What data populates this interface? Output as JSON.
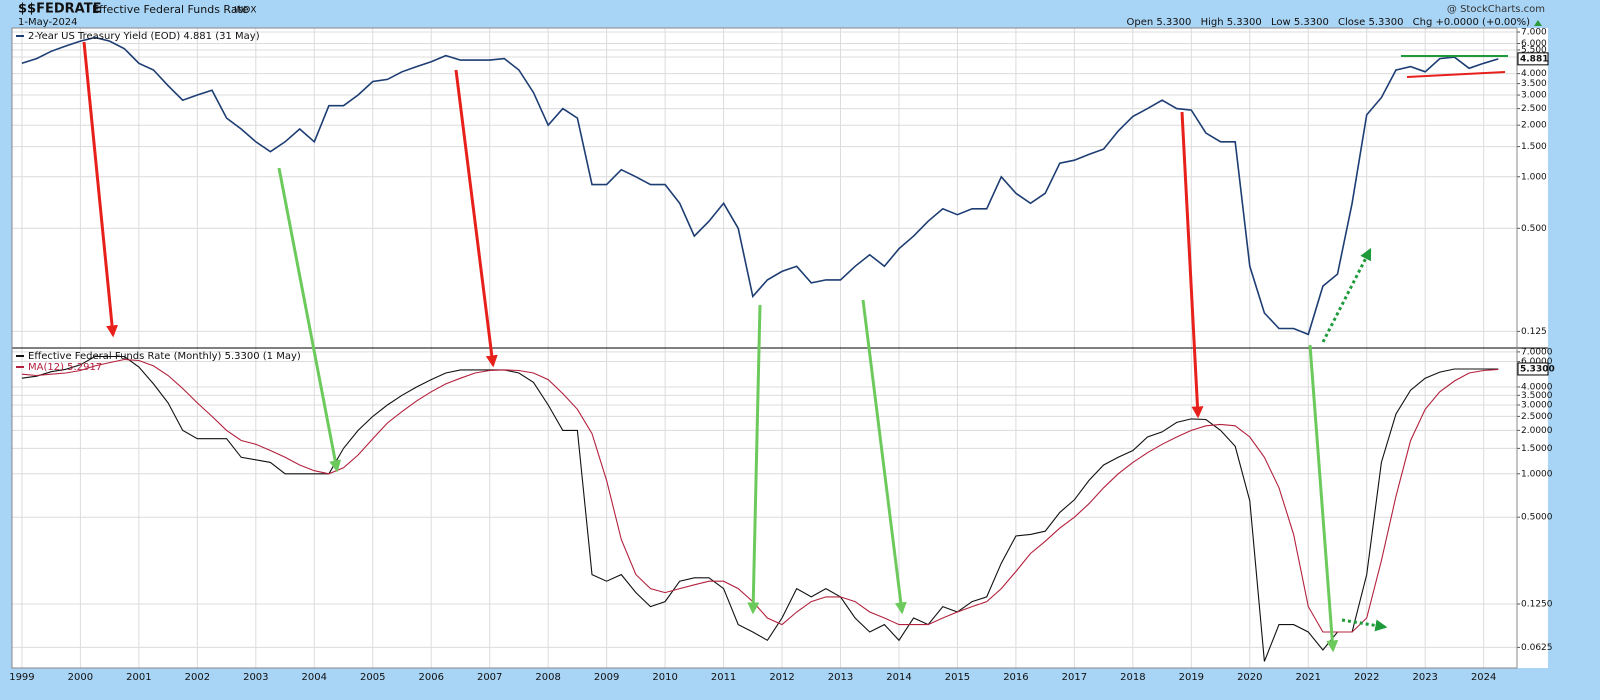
{
  "header": {
    "symbol": "$$FEDRATE",
    "name": "Effective Federal Funds Rate",
    "exchange": "INDX",
    "date": "1-May-2024",
    "credit": "@ StockCharts.com",
    "quote": [
      {
        "label": "Open",
        "value": "5.3300"
      },
      {
        "label": "High",
        "value": "5.3300"
      },
      {
        "label": "Low",
        "value": "5.3300"
      },
      {
        "label": "Close",
        "value": "5.3300"
      },
      {
        "label": "Chg",
        "value": "+0.0000 (+0.00%)"
      }
    ]
  },
  "chart_data": [
    {
      "type": "line",
      "log_scale": true,
      "grid": true,
      "x": [
        1999,
        1999.25,
        1999.5,
        1999.75,
        2000,
        2000.25,
        2000.5,
        2000.75,
        2001,
        2001.25,
        2001.5,
        2001.75,
        2002,
        2002.25,
        2002.5,
        2002.75,
        2003,
        2003.25,
        2003.5,
        2003.75,
        2004,
        2004.25,
        2004.5,
        2004.75,
        2005,
        2005.25,
        2005.5,
        2005.75,
        2006,
        2006.25,
        2006.5,
        2006.75,
        2007,
        2007.25,
        2007.5,
        2007.75,
        2008,
        2008.25,
        2008.5,
        2008.75,
        2009,
        2009.25,
        2009.5,
        2009.75,
        2010,
        2010.25,
        2010.5,
        2010.75,
        2011,
        2011.25,
        2011.5,
        2011.75,
        2012,
        2012.25,
        2012.5,
        2012.75,
        2013,
        2013.25,
        2013.5,
        2013.75,
        2014,
        2014.25,
        2014.5,
        2014.75,
        2015,
        2015.25,
        2015.5,
        2015.75,
        2016,
        2016.25,
        2016.5,
        2016.75,
        2017,
        2017.25,
        2017.5,
        2017.75,
        2018,
        2018.25,
        2018.5,
        2018.75,
        2019,
        2019.25,
        2019.5,
        2019.75,
        2020,
        2020.25,
        2020.5,
        2020.75,
        2021,
        2021.25,
        2021.5,
        2021.75,
        2022,
        2022.25,
        2022.5,
        2022.75,
        2023,
        2023.25,
        2023.5,
        2023.75,
        2024,
        2024.25
      ],
      "xlim": [
        1998.83,
        2024.57
      ],
      "xticks": [
        1999,
        2000,
        2001,
        2002,
        2003,
        2004,
        2005,
        2006,
        2007,
        2008,
        2009,
        2010,
        2011,
        2012,
        2013,
        2014,
        2015,
        2016,
        2017,
        2018,
        2019,
        2020,
        2021,
        2022,
        2023,
        2024
      ],
      "ylim": [
        0.1,
        7.39
      ],
      "yticks": [
        {
          "value": 7,
          "label": "7.000"
        },
        {
          "value": 6,
          "label": "6.000"
        },
        {
          "value": 5.5,
          "label": "5.500"
        },
        {
          "value": 5,
          "label": "5.000"
        },
        {
          "value": 4,
          "label": "4.000"
        },
        {
          "value": 3.5,
          "label": "3.500"
        },
        {
          "value": 3,
          "label": "3.000"
        },
        {
          "value": 2.5,
          "label": "2.500"
        },
        {
          "value": 2,
          "label": "2.000"
        },
        {
          "value": 1.5,
          "label": "1.500"
        },
        {
          "value": 1,
          "label": "1.000"
        },
        {
          "value": 0.5,
          "label": "0.500"
        },
        {
          "value": 0.125,
          "label": "0.125"
        }
      ],
      "last_value_tag": 4.881,
      "series": [
        {
          "name": "2-Year US Treasury Yield (EOD) 4.881 (31 May)",
          "color": "#1d3d73",
          "values": [
            4.6,
            4.9,
            5.4,
            5.8,
            6.2,
            6.5,
            6.2,
            5.6,
            4.6,
            4.2,
            3.4,
            2.8,
            3.0,
            3.2,
            2.2,
            1.9,
            1.6,
            1.4,
            1.6,
            1.9,
            1.6,
            2.6,
            2.6,
            3.0,
            3.6,
            3.7,
            4.1,
            4.4,
            4.7,
            5.1,
            4.8,
            4.8,
            4.8,
            4.9,
            4.2,
            3.1,
            2.0,
            2.5,
            2.2,
            0.9,
            0.9,
            1.1,
            1.0,
            0.9,
            0.9,
            0.7,
            0.45,
            0.55,
            0.7,
            0.5,
            0.2,
            0.25,
            0.28,
            0.3,
            0.24,
            0.25,
            0.25,
            0.3,
            0.35,
            0.3,
            0.38,
            0.45,
            0.55,
            0.65,
            0.6,
            0.65,
            0.65,
            1.0,
            0.8,
            0.7,
            0.8,
            1.2,
            1.25,
            1.35,
            1.45,
            1.85,
            2.25,
            2.5,
            2.8,
            2.5,
            2.45,
            1.8,
            1.6,
            1.6,
            0.3,
            0.16,
            0.13,
            0.13,
            0.12,
            0.23,
            0.27,
            0.7,
            2.3,
            2.9,
            4.2,
            4.4,
            4.1,
            4.9,
            5.0,
            4.3,
            4.6,
            4.88
          ]
        }
      ]
    },
    {
      "type": "line",
      "log_scale": true,
      "grid": true,
      "x": [
        1999,
        1999.25,
        1999.5,
        1999.75,
        2000,
        2000.25,
        2000.5,
        2000.75,
        2001,
        2001.25,
        2001.5,
        2001.75,
        2002,
        2002.25,
        2002.5,
        2002.75,
        2003,
        2003.25,
        2003.5,
        2003.75,
        2004,
        2004.25,
        2004.5,
        2004.75,
        2005,
        2005.25,
        2005.5,
        2005.75,
        2006,
        2006.25,
        2006.5,
        2006.75,
        2007,
        2007.25,
        2007.5,
        2007.75,
        2008,
        2008.25,
        2008.5,
        2008.75,
        2009,
        2009.25,
        2009.5,
        2009.75,
        2010,
        2010.25,
        2010.5,
        2010.75,
        2011,
        2011.25,
        2011.5,
        2011.75,
        2012,
        2012.25,
        2012.5,
        2012.75,
        2013,
        2013.25,
        2013.5,
        2013.75,
        2014,
        2014.25,
        2014.5,
        2014.75,
        2015,
        2015.25,
        2015.5,
        2015.75,
        2016,
        2016.25,
        2016.5,
        2016.75,
        2017,
        2017.25,
        2017.5,
        2017.75,
        2018,
        2018.25,
        2018.5,
        2018.75,
        2019,
        2019.25,
        2019.5,
        2019.75,
        2020,
        2020.25,
        2020.5,
        2020.75,
        2021,
        2021.25,
        2021.5,
        2021.75,
        2022,
        2022.25,
        2022.5,
        2022.75,
        2023,
        2023.25,
        2023.5,
        2023.75,
        2024,
        2024.25
      ],
      "xlim": [
        1998.83,
        2024.57
      ],
      "xticks": [
        1999,
        2000,
        2001,
        2002,
        2003,
        2004,
        2005,
        2006,
        2007,
        2008,
        2009,
        2010,
        2011,
        2012,
        2013,
        2014,
        2015,
        2016,
        2017,
        2018,
        2019,
        2020,
        2021,
        2022,
        2023,
        2024
      ],
      "ylim": [
        0.045,
        7.45
      ],
      "yticks": [
        {
          "value": 7,
          "label": "7.0000"
        },
        {
          "value": 6,
          "label": "6.0000"
        },
        {
          "value": 4,
          "label": "4.0000"
        },
        {
          "value": 3.5,
          "label": "3.5000"
        },
        {
          "value": 3,
          "label": "3.0000"
        },
        {
          "value": 2.5,
          "label": "2.5000"
        },
        {
          "value": 2,
          "label": "2.0000"
        },
        {
          "value": 1.5,
          "label": "1.5000"
        },
        {
          "value": 1,
          "label": "1.0000"
        },
        {
          "value": 0.5,
          "label": "0.5000"
        },
        {
          "value": 0.125,
          "label": "0.1250"
        },
        {
          "value": 0.0625,
          "label": "0.0625"
        }
      ],
      "last_value_tag": {
        "value": 5.33,
        "label": "5.3300"
      },
      "series": [
        {
          "name": "Effective Federal Funds Rate (Monthly) 5.3300 (1 May)",
          "color": "#111111",
          "values": [
            4.6,
            4.75,
            5.1,
            5.3,
            5.7,
            6.5,
            6.5,
            6.5,
            5.5,
            4.2,
            3.1,
            2.0,
            1.75,
            1.75,
            1.75,
            1.3,
            1.25,
            1.2,
            1.0,
            1.0,
            1.0,
            1.0,
            1.5,
            2.0,
            2.5,
            3.0,
            3.5,
            4.0,
            4.5,
            5.0,
            5.25,
            5.25,
            5.25,
            5.25,
            5.0,
            4.3,
            3.0,
            2.0,
            2.0,
            0.2,
            0.18,
            0.2,
            0.15,
            0.12,
            0.13,
            0.18,
            0.19,
            0.19,
            0.16,
            0.09,
            0.08,
            0.07,
            0.1,
            0.16,
            0.14,
            0.16,
            0.14,
            0.1,
            0.08,
            0.09,
            0.07,
            0.1,
            0.09,
            0.12,
            0.11,
            0.13,
            0.14,
            0.24,
            0.37,
            0.38,
            0.4,
            0.54,
            0.66,
            0.9,
            1.15,
            1.3,
            1.45,
            1.8,
            1.95,
            2.27,
            2.4,
            2.38,
            2.0,
            1.55,
            0.65,
            0.05,
            0.09,
            0.09,
            0.08,
            0.06,
            0.08,
            0.08,
            0.2,
            1.2,
            2.6,
            3.8,
            4.6,
            5.07,
            5.33,
            5.33,
            5.33,
            5.33
          ]
        },
        {
          "name": "MA(12) 5.2917",
          "color": "#b3203d",
          "values": [
            4.9,
            4.8,
            4.9,
            5.0,
            5.2,
            5.6,
            5.9,
            6.2,
            6.1,
            5.6,
            4.8,
            3.9,
            3.1,
            2.5,
            2.0,
            1.7,
            1.6,
            1.45,
            1.3,
            1.15,
            1.05,
            1.0,
            1.1,
            1.35,
            1.75,
            2.25,
            2.7,
            3.2,
            3.7,
            4.2,
            4.6,
            5.0,
            5.2,
            5.25,
            5.2,
            5.0,
            4.5,
            3.6,
            2.8,
            1.9,
            0.9,
            0.35,
            0.2,
            0.16,
            0.15,
            0.16,
            0.17,
            0.18,
            0.18,
            0.16,
            0.13,
            0.1,
            0.09,
            0.11,
            0.13,
            0.14,
            0.14,
            0.13,
            0.11,
            0.1,
            0.09,
            0.09,
            0.09,
            0.1,
            0.11,
            0.12,
            0.13,
            0.16,
            0.21,
            0.28,
            0.34,
            0.42,
            0.5,
            0.62,
            0.8,
            1.0,
            1.2,
            1.4,
            1.6,
            1.8,
            2.0,
            2.15,
            2.2,
            2.15,
            1.8,
            1.3,
            0.8,
            0.38,
            0.12,
            0.08,
            0.08,
            0.08,
            0.1,
            0.25,
            0.7,
            1.7,
            2.8,
            3.7,
            4.4,
            5.0,
            5.2,
            5.29
          ]
        }
      ]
    }
  ]
}
